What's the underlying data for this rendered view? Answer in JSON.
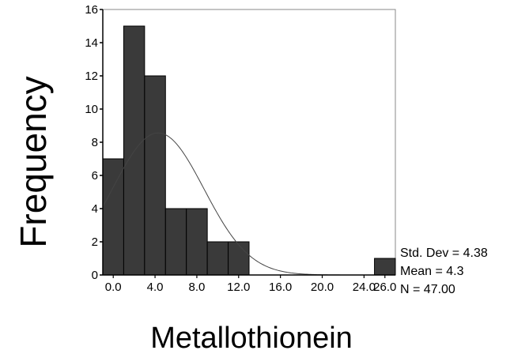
{
  "chart_data": {
    "type": "histogram",
    "xlabel": "Metallothionein",
    "ylabel": "Frequency",
    "bin_width": 2,
    "bins": [
      {
        "start": -1,
        "end": 1,
        "count": 7
      },
      {
        "start": 1,
        "end": 3,
        "count": 15
      },
      {
        "start": 3,
        "end": 5,
        "count": 12
      },
      {
        "start": 5,
        "end": 7,
        "count": 4
      },
      {
        "start": 7,
        "end": 9,
        "count": 4
      },
      {
        "start": 9,
        "end": 11,
        "count": 2
      },
      {
        "start": 11,
        "end": 13,
        "count": 2
      },
      {
        "start": 25,
        "end": 27,
        "count": 1
      }
    ],
    "x_ticks": [
      0,
      4,
      8,
      12,
      16,
      20,
      24,
      26
    ],
    "x_tick_labels": [
      "0.0",
      "4.0",
      "8.0",
      "12.0",
      "16.0",
      "20.0",
      "24.0",
      "26.0"
    ],
    "y_ticks": [
      0,
      2,
      4,
      6,
      8,
      10,
      12,
      14,
      16
    ],
    "y_tick_labels": [
      "0",
      "2",
      "4",
      "6",
      "8",
      "10",
      "12",
      "14",
      "16"
    ],
    "xlim": [
      -1,
      27
    ],
    "ylim": [
      0,
      16
    ],
    "normal_curve": {
      "mean": 4.3,
      "std_dev": 4.38,
      "n": 47,
      "bin_width": 2
    },
    "stats": {
      "std_dev_label": "Std. Dev = 4.38",
      "mean_label": "Mean = 4.3",
      "n_label": "N = 47.00"
    },
    "bar_color": "#3a3a3a"
  }
}
